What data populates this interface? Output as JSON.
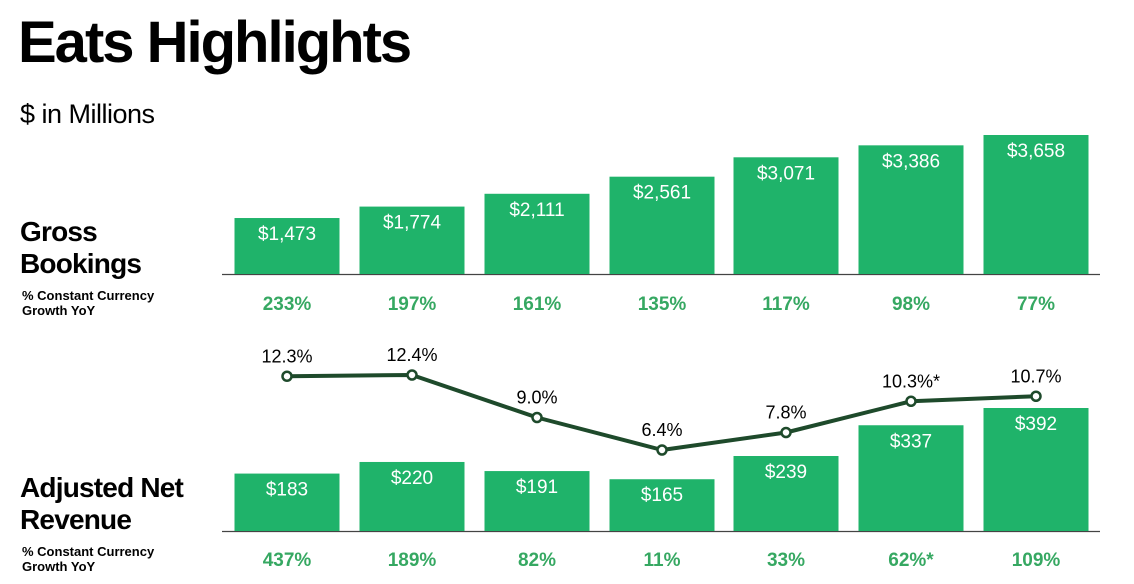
{
  "header": {
    "title": "Eats Highlights",
    "subtitle": "$ in Millions"
  },
  "sections": {
    "gross_bookings": {
      "label": "Gross Bookings",
      "sub_label": "% Constant Currency Growth YoY"
    },
    "adjusted_net_revenue": {
      "label": "Adjusted Net Revenue",
      "sub_label": "% Constant Currency Growth YoY"
    }
  },
  "colors": {
    "bar": "#1fb36a",
    "growth_text": "#36a862",
    "line": "#1e4a2b",
    "axis": "#444444"
  },
  "chart_data": [
    {
      "type": "bar",
      "name": "Gross Bookings",
      "values": [
        1473,
        1774,
        2111,
        2561,
        3071,
        3386,
        3658
      ],
      "value_labels": [
        "$1,473",
        "$1,774",
        "$2,111",
        "$2,561",
        "$3,071",
        "$3,386",
        "$3,658"
      ],
      "growth_labels": [
        "233%",
        "197%",
        "161%",
        "135%",
        "117%",
        "98%",
        "77%"
      ],
      "ylim": [
        0,
        3658
      ]
    },
    {
      "type": "bar",
      "name": "Adjusted Net Revenue",
      "values": [
        183,
        220,
        191,
        165,
        239,
        337,
        392
      ],
      "value_labels": [
        "$183",
        "$220",
        "$191",
        "$165",
        "$239",
        "$337",
        "$392"
      ],
      "growth_labels": [
        "437%",
        "189%",
        "82%",
        "11%",
        "33%",
        "62%*",
        "109%"
      ],
      "ylim": [
        0,
        392
      ]
    },
    {
      "type": "line",
      "values": [
        12.3,
        12.4,
        9.0,
        6.4,
        7.8,
        10.3,
        10.7
      ],
      "value_labels": [
        "12.3%",
        "12.4%",
        "9.0%",
        "6.4%",
        "7.8%",
        "10.3%*",
        "10.7%"
      ],
      "ylim": [
        6.4,
        12.4
      ]
    }
  ]
}
